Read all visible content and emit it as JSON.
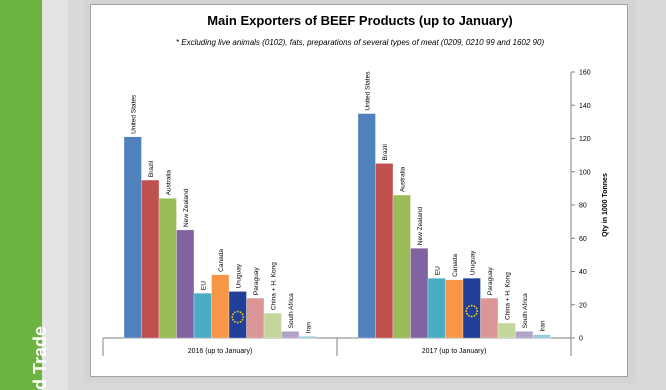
{
  "sidebar": {
    "title": "d Trade",
    "accent": "#6db33f"
  },
  "chart_data": {
    "type": "bar",
    "title": "Main Exporters of BEEF Products (up to January)",
    "subtitle": "* Excluding live animals (0102), fats, preparations of several types of meat (0209, 0210 99 and 1602 90)",
    "ylabel": "Qty in 1000 Tonnes",
    "ylim": [
      0,
      160
    ],
    "yticks": [
      0,
      20,
      40,
      60,
      80,
      100,
      120,
      140,
      160
    ],
    "y_axis_position": "right",
    "legend": "none",
    "series_labels": [
      "United States",
      "Brazil",
      "Australia",
      "New Zealand",
      "EU",
      "Canada",
      "Uruguay",
      "Paraguay",
      "China + H. Kong",
      "South Africa",
      "Iran"
    ],
    "colors": [
      "#4f81bd",
      "#c0504d",
      "#9bbb59",
      "#8064a2",
      "#4bacc6",
      "#f79646",
      "#1f3f99",
      "#d99694",
      "#c3d69b",
      "#b3a2c7",
      "#93cddd"
    ],
    "groups": [
      {
        "label": "2016 (up to January)",
        "values": [
          121,
          95,
          84,
          65,
          27,
          38,
          28,
          24,
          15,
          4,
          1
        ]
      },
      {
        "label": "2017 (up to January)",
        "values": [
          135,
          105,
          86,
          54,
          36,
          35,
          36,
          24,
          9,
          4,
          2
        ]
      }
    ]
  }
}
